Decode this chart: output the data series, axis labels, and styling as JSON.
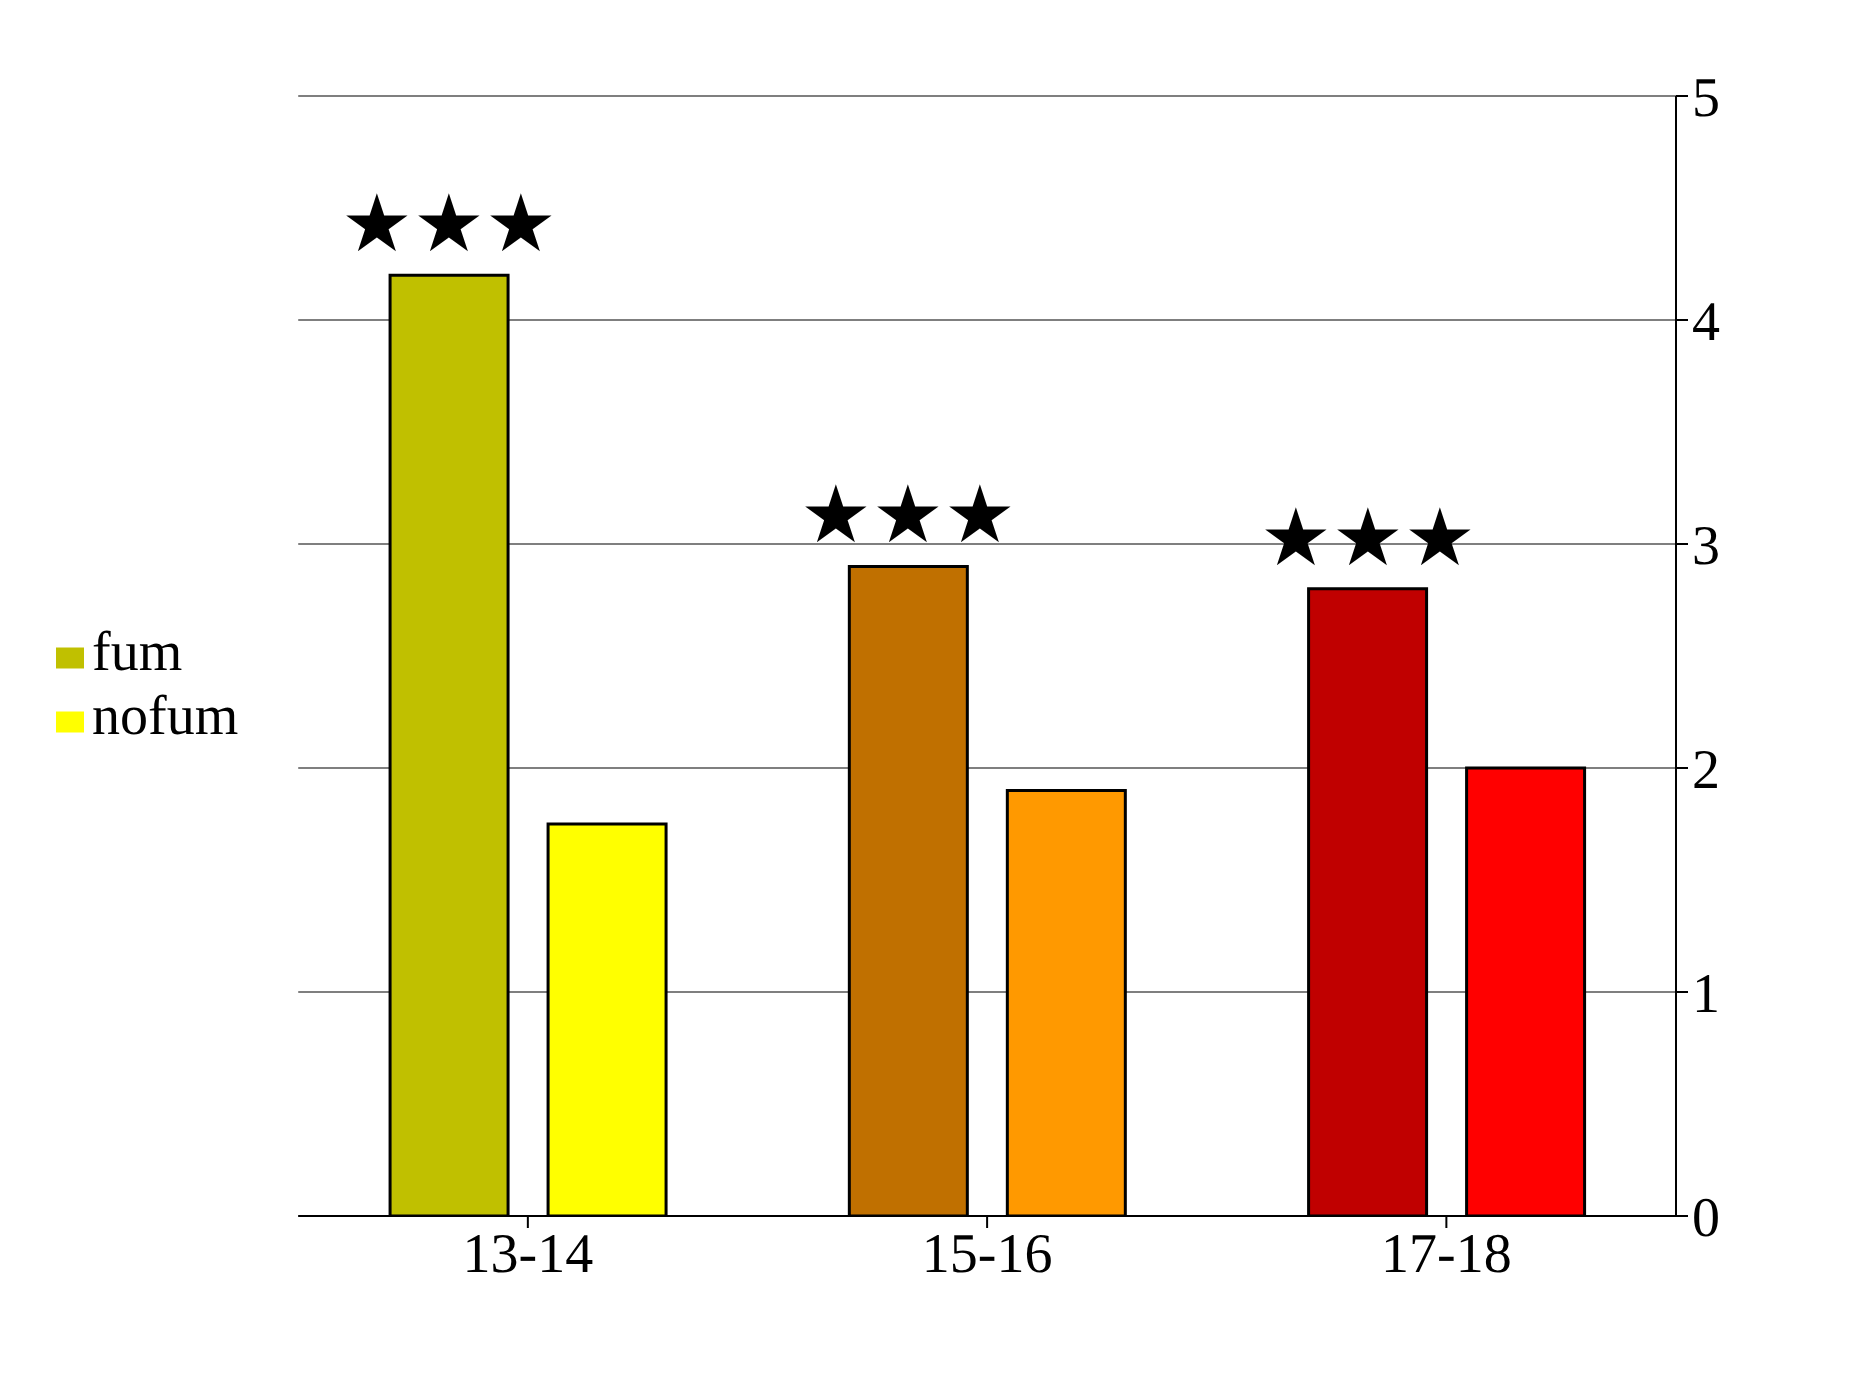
{
  "chart_data": {
    "type": "bar",
    "categories": [
      "13-14",
      "15-16",
      "17-18"
    ],
    "series": [
      {
        "name": "fum",
        "colors": [
          "#c0c000",
          "#c07000",
          "#c00000"
        ],
        "values": [
          4.2,
          2.9,
          2.8
        ]
      },
      {
        "name": "nofum",
        "colors": [
          "#ffff00",
          "#ff9900",
          "#ff0000"
        ],
        "values": [
          1.75,
          1.9,
          2.0
        ]
      }
    ],
    "ylim": [
      0,
      5
    ],
    "yticks": [
      0,
      1,
      2,
      3,
      4,
      5
    ],
    "grid": "y",
    "legend": "left",
    "annotations": [
      "★★★",
      "★★★",
      "★★★"
    ]
  }
}
